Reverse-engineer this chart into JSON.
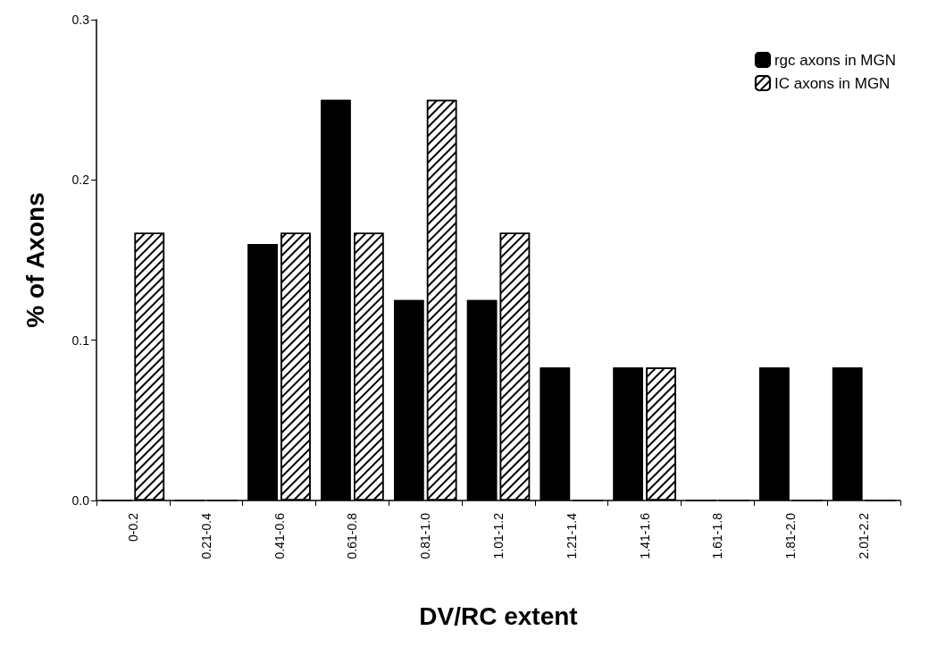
{
  "chart_data": {
    "type": "bar",
    "xlabel": "DV/RC extent",
    "ylabel": "% of Axons",
    "categories": [
      "0-0.2",
      "0.21-0.4",
      "0.41-0.6",
      "0.61-0.8",
      "0.81-1.0",
      "1.01-1.2",
      "1.21-1.4",
      "1.41-1.6",
      "1.61-1.8",
      "1.81-2.0",
      "2.01-2.2"
    ],
    "series": [
      {
        "name": "rgc axons in MGN",
        "color": "#000000",
        "values": [
          0,
          0,
          0.16,
          0.25,
          0.125,
          0.125,
          0.083,
          0.083,
          0,
          0.083,
          0.083
        ]
      },
      {
        "name": "IC axons in MGN",
        "color": "#ffffff",
        "values": [
          0.167,
          0,
          0.167,
          0.167,
          0.25,
          0.167,
          0,
          0.083,
          0,
          0,
          0
        ]
      }
    ],
    "ylim": [
      0,
      0.3
    ],
    "yticks": [
      {
        "value": 0,
        "label": "0.0"
      },
      {
        "value": 0.1,
        "label": "0.1"
      },
      {
        "value": 0.2,
        "label": "0.2"
      },
      {
        "value": 0.3,
        "label": "0.3"
      }
    ],
    "grid": false,
    "legend": "top right"
  }
}
